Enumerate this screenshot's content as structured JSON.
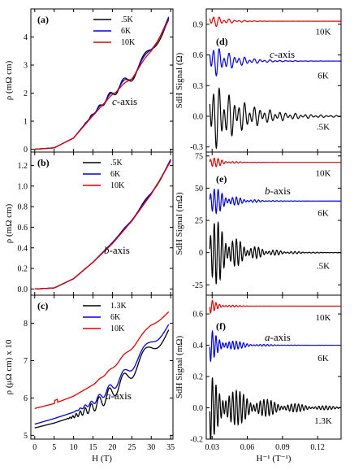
{
  "chart_data": [
    {
      "type": "line",
      "panel": "(a)",
      "annotation": "c-axis",
      "ylabel": "ρ (mΩ cm)",
      "xlim": [
        -1,
        35.6
      ],
      "ylim": [
        -0.1,
        5.0
      ],
      "xticks": [
        0,
        5,
        10,
        15,
        20,
        25,
        30,
        35
      ],
      "yticks": [
        0,
        1,
        2,
        3,
        4
      ],
      "legend": {
        "placement": "top-right",
        "entries": [
          ".5K",
          "6K",
          "10K"
        ]
      },
      "series": [
        {
          "name": ".5K",
          "color": "#000000",
          "x": [
            0,
            5,
            10,
            15,
            20,
            25,
            30,
            34.5
          ],
          "y": [
            0.0,
            0.05,
            0.4,
            1.25,
            2.0,
            2.6,
            3.55,
            4.65
          ],
          "osc_amp": 0.2,
          "osc_start": 12
        },
        {
          "name": "6K",
          "color": "#0000dd",
          "x": [
            0,
            5,
            10,
            15,
            20,
            25,
            30,
            34.5
          ],
          "y": [
            0.0,
            0.05,
            0.4,
            1.25,
            2.0,
            2.6,
            3.55,
            4.7
          ],
          "osc_amp": 0.12,
          "osc_start": 13
        },
        {
          "name": "10K",
          "color": "#dd0000",
          "x": [
            0,
            5,
            10,
            15,
            20,
            25,
            30,
            34.5
          ],
          "y": [
            0.0,
            0.05,
            0.4,
            1.2,
            1.95,
            2.55,
            3.5,
            4.6
          ],
          "osc_amp": 0.05,
          "osc_start": 15
        }
      ]
    },
    {
      "type": "line",
      "panel": "(b)",
      "annotation": "b-axis",
      "ylabel": "ρ (mΩ cm)",
      "xlim": [
        -1,
        35.6
      ],
      "ylim": [
        -0.06,
        1.33
      ],
      "xticks": [
        0,
        5,
        10,
        15,
        20,
        25,
        30,
        35
      ],
      "yticks": [
        0.0,
        0.2,
        0.4,
        0.6,
        0.8,
        1.0,
        1.2
      ],
      "legend": {
        "placement": "top-left",
        "entries": [
          ".5K",
          "6K",
          "10K"
        ]
      },
      "series": [
        {
          "name": ".5K",
          "color": "#000000",
          "x": [
            0,
            5,
            10,
            15,
            20,
            25,
            30,
            35
          ],
          "y": [
            0.0,
            0.01,
            0.1,
            0.26,
            0.45,
            0.67,
            0.93,
            1.25
          ],
          "osc_amp": 0.02,
          "osc_start": 20
        },
        {
          "name": "6K",
          "color": "#0000dd",
          "x": [
            0,
            5,
            10,
            15,
            20,
            25,
            30,
            35
          ],
          "y": [
            0.0,
            0.01,
            0.1,
            0.26,
            0.45,
            0.67,
            0.93,
            1.25
          ],
          "osc_amp": 0.012,
          "osc_start": 22
        },
        {
          "name": "10K",
          "color": "#dd0000",
          "x": [
            0,
            5,
            10,
            15,
            20,
            25,
            30,
            35
          ],
          "y": [
            0.0,
            0.01,
            0.1,
            0.26,
            0.44,
            0.66,
            0.92,
            1.24
          ],
          "osc_amp": 0.004,
          "osc_start": 25
        }
      ]
    },
    {
      "type": "line",
      "panel": "(c)",
      "annotation": "a-axis",
      "ylabel": "ρ (μΩ cm) x 10",
      "xlabel": "H (T)",
      "xlim": [
        -1,
        35.6
      ],
      "ylim": [
        4.9,
        8.75
      ],
      "xticks": [
        0,
        5,
        10,
        15,
        20,
        25,
        30,
        35
      ],
      "yticks": [
        5,
        6,
        7,
        8
      ],
      "legend": {
        "placement": "top-left",
        "entries": [
          "1.3K",
          "6K",
          "10K"
        ]
      },
      "series": [
        {
          "name": "1.3K",
          "color": "#000000",
          "x": [
            0,
            5,
            10,
            15,
            20,
            25,
            30,
            34.5
          ],
          "y": [
            5.2,
            5.33,
            5.5,
            5.75,
            6.15,
            6.7,
            7.35,
            7.8
          ],
          "osc_amp": 0.18,
          "osc_start": 8
        },
        {
          "name": "6K",
          "color": "#0000dd",
          "x": [
            0,
            5,
            10,
            15,
            20,
            25,
            30,
            34.5
          ],
          "y": [
            5.3,
            5.45,
            5.62,
            5.88,
            6.3,
            6.85,
            7.5,
            7.95
          ],
          "osc_amp": 0.12,
          "osc_start": 10
        },
        {
          "name": "10K",
          "color": "#dd0000",
          "x": [
            0,
            5,
            10,
            15,
            20,
            25,
            30,
            34.5
          ],
          "y": [
            5.72,
            5.85,
            6.05,
            6.35,
            6.8,
            7.35,
            7.95,
            8.3
          ],
          "osc_amp": 0.04,
          "osc_start": 14
        }
      ]
    },
    {
      "type": "line",
      "panel": "(d)",
      "annotation": "c-axis",
      "ylabel": "SdH Signal (Ω)",
      "xlim": [
        0.025,
        0.14
      ],
      "ylim": [
        -0.35,
        1.05
      ],
      "xticks": [
        0.03,
        0.06,
        0.09,
        0.12
      ],
      "yticks": [
        -0.3,
        0.0,
        0.3,
        0.6,
        0.9
      ],
      "series": [
        {
          "name": "10K",
          "color": "#dd0000",
          "offset": 0.93,
          "amp": 0.07,
          "decay": 0.012,
          "label_y": 0.83
        },
        {
          "name": "6K",
          "color": "#0000dd",
          "offset": 0.54,
          "amp": 0.17,
          "decay": 0.018,
          "label_y": 0.4
        },
        {
          "name": ".5K",
          "color": "#000000",
          "offset": 0.0,
          "amp": 0.33,
          "decay": 0.028,
          "label_y": -0.1
        }
      ]
    },
    {
      "type": "line",
      "panel": "(e)",
      "annotation": "b-axis",
      "ylabel": "SdH Signal (mΩ)",
      "xlim": [
        0.025,
        0.14
      ],
      "ylim": [
        -33,
        78
      ],
      "xticks": [
        0.03,
        0.06,
        0.09,
        0.12
      ],
      "yticks": [
        -25,
        0,
        25,
        50,
        75
      ],
      "series": [
        {
          "name": "10K",
          "color": "#dd0000",
          "offset": 70,
          "amp": 5,
          "decay": 0.01,
          "label_y": 62
        },
        {
          "name": "6K",
          "color": "#0000dd",
          "offset": 40,
          "amp": 12,
          "decay": 0.015,
          "label_y": 31
        },
        {
          "name": ".5K",
          "color": "#000000",
          "offset": 0,
          "amp": 28,
          "decay": 0.02,
          "label_y": -10
        }
      ]
    },
    {
      "type": "line",
      "panel": "(f)",
      "annotation": "a-axis",
      "ylabel": "SdH Signal (mΩ)",
      "xlabel": "H⁻¹ (T⁻¹)",
      "xlim": [
        0.025,
        0.14
      ],
      "ylim": [
        -0.2,
        0.72
      ],
      "xticks": [
        0.03,
        0.06,
        0.09,
        0.12
      ],
      "yticks": [
        -0.2,
        0.0,
        0.2,
        0.4,
        0.6
      ],
      "series": [
        {
          "name": "10K",
          "color": "#dd0000",
          "offset": 0.65,
          "amp": 0.04,
          "decay": 0.01,
          "label_y": 0.58
        },
        {
          "name": "6K",
          "color": "#0000dd",
          "offset": 0.4,
          "amp": 0.09,
          "decay": 0.016,
          "label_y": 0.32
        },
        {
          "name": "1.3K",
          "color": "#000000",
          "offset": 0.0,
          "amp": 0.18,
          "decay": 0.035,
          "label_y": -0.08
        }
      ]
    }
  ]
}
